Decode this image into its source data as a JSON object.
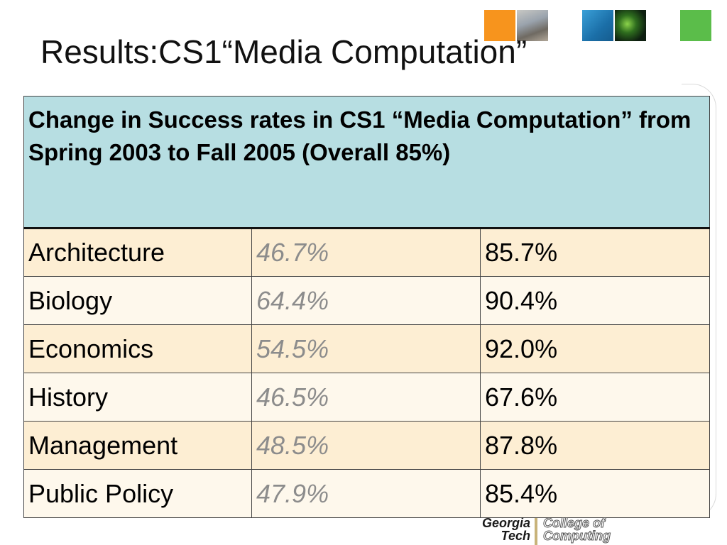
{
  "slide": {
    "title": "Results:CS1“Media Computation”"
  },
  "table": {
    "header": "Change in Success rates in CS1 “Media Computation” from Spring 2003 to Fall 2005 (Overall 85%)",
    "rows": [
      {
        "major": "Architecture",
        "before": "46.7%",
        "after": "85.7%"
      },
      {
        "major": "Biology",
        "before": "64.4%",
        "after": "90.4%"
      },
      {
        "major": "Economics",
        "before": "54.5%",
        "after": "92.0%"
      },
      {
        "major": "History",
        "before": "46.5%",
        "after": "67.6%"
      },
      {
        "major": "Management",
        "before": "48.5%",
        "after": "87.8%"
      },
      {
        "major": "Public Policy",
        "before": "47.9%",
        "after": "85.4%"
      }
    ]
  },
  "logo": {
    "line1_left": "Georgia",
    "line2_left": "Tech",
    "line1_right": "College of",
    "line2_right": "Computing"
  },
  "colors": {
    "header_bg": "#b7dee2",
    "row_odd": "#fdeed3",
    "row_even": "#fef8ec",
    "before_text": "#8c8c8c"
  }
}
